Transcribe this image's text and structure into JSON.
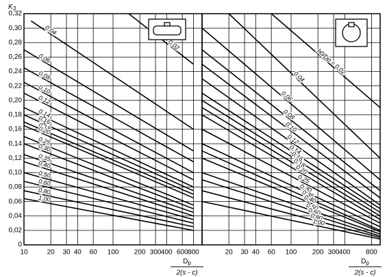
{
  "chart_data": [
    {
      "type": "line",
      "ylabel": "K",
      "ylabel_sub": "3",
      "xlabel_num": "D",
      "xlabel_num_sub": "p",
      "xlabel_den": "2(s - c)",
      "xlim": [
        10,
        1000
      ],
      "ylim": [
        0,
        0.32
      ],
      "log_x": true,
      "grid": true,
      "color": "#000000",
      "xticks": [
        10,
        20,
        30,
        40,
        60,
        100,
        200,
        300,
        400,
        600,
        800
      ],
      "yticks": [
        0,
        {
          "value": 0.02,
          "label": "0,02"
        },
        {
          "value": 0.04,
          "label": "0,04"
        },
        {
          "value": 0.06,
          "label": "0,06"
        },
        {
          "value": 0.08,
          "label": "0,08"
        },
        {
          "value": 0.1,
          "label": "0,10"
        },
        {
          "value": 0.12,
          "label": "0,12"
        },
        {
          "value": 0.14,
          "label": "0,14"
        },
        {
          "value": 0.16,
          "label": "0,16"
        },
        {
          "value": 0.18,
          "label": "0,18"
        },
        {
          "value": 0.2,
          "label": "0,20"
        },
        {
          "value": 0.22,
          "label": "0,22"
        },
        {
          "value": 0.24,
          "label": "0,24"
        },
        {
          "value": 0.26,
          "label": "0,26"
        },
        {
          "value": 0.28,
          "label": "0,28"
        },
        {
          "value": 0.3,
          "label": "0,30"
        },
        {
          "value": 0.32,
          "label": "0,32"
        }
      ],
      "series": [
        {
          "name": "b0/Dp = 0,02",
          "x": [
            150,
            800
          ],
          "values": [
            0.32,
            0.25
          ]
        },
        {
          "name": "0,04",
          "x": [
            12,
            800
          ],
          "values": [
            0.31,
            0.16
          ]
        },
        {
          "name": "0,06",
          "x": [
            10,
            800
          ],
          "values": [
            0.27,
            0.13
          ]
        },
        {
          "name": "0,08",
          "x": [
            10,
            800
          ],
          "values": [
            0.245,
            0.115
          ]
        },
        {
          "name": "0,10",
          "x": [
            10,
            800
          ],
          "values": [
            0.225,
            0.1
          ]
        },
        {
          "name": "0,12",
          "x": [
            10,
            800
          ],
          "values": [
            0.21,
            0.09
          ]
        },
        {
          "name": "0,14",
          "x": [
            10,
            800
          ],
          "values": [
            0.19,
            0.08
          ]
        },
        {
          "name": "0,16",
          "x": [
            10,
            800
          ],
          "values": [
            0.18,
            0.075
          ]
        },
        {
          "name": "0,18",
          "x": [
            10,
            800
          ],
          "values": [
            0.17,
            0.07
          ]
        },
        {
          "name": "0,20",
          "x": [
            10,
            800
          ],
          "values": [
            0.165,
            0.065
          ]
        },
        {
          "name": "0,25",
          "x": [
            10,
            800
          ],
          "values": [
            0.15,
            0.055
          ]
        },
        {
          "name": "0,30",
          "x": [
            10,
            800
          ],
          "values": [
            0.14,
            0.05
          ]
        },
        {
          "name": "0,35",
          "x": [
            10,
            800
          ],
          "values": [
            0.125,
            0.045
          ]
        },
        {
          "name": "0,40",
          "x": [
            10,
            800
          ],
          "values": [
            0.115,
            0.04
          ]
        },
        {
          "name": "0,50",
          "x": [
            10,
            800
          ],
          "values": [
            0.1,
            0.035
          ]
        },
        {
          "name": "0,60",
          "x": [
            10,
            800
          ],
          "values": [
            0.088,
            0.03
          ]
        },
        {
          "name": "0,80",
          "x": [
            10,
            800
          ],
          "values": [
            0.075,
            0.025
          ]
        },
        {
          "name": "1,00",
          "x": [
            10,
            800
          ],
          "values": [
            0.064,
            0.02
          ]
        }
      ]
    },
    {
      "type": "line",
      "xlabel_num": "D",
      "xlabel_num_sub": "p",
      "xlabel_den": "2(s - c)",
      "xlim": [
        10,
        1000
      ],
      "ylim": [
        0,
        0.32
      ],
      "log_x": true,
      "grid": true,
      "color": "#000000",
      "xticks": [
        20,
        30,
        40,
        60,
        100,
        200,
        300,
        400,
        800
      ],
      "series": [
        {
          "name": "b0/Dp = 0,02",
          "x": [
            60,
            1000
          ],
          "values": [
            0.32,
            0.19
          ]
        },
        {
          "name": "0,04",
          "x": [
            20,
            1000
          ],
          "values": [
            0.32,
            0.12
          ]
        },
        {
          "name": "0,06",
          "x": [
            10,
            1000
          ],
          "values": [
            0.3,
            0.09
          ]
        },
        {
          "name": "0,08",
          "x": [
            10,
            1000
          ],
          "values": [
            0.27,
            0.075
          ]
        },
        {
          "name": "0,10",
          "x": [
            10,
            1000
          ],
          "values": [
            0.25,
            0.065
          ]
        },
        {
          "name": "0,12",
          "x": [
            10,
            1000
          ],
          "values": [
            0.23,
            0.055
          ]
        },
        {
          "name": "0,14",
          "x": [
            10,
            1000
          ],
          "values": [
            0.21,
            0.05
          ]
        },
        {
          "name": "0,16",
          "x": [
            10,
            1000
          ],
          "values": [
            0.2,
            0.045
          ]
        },
        {
          "name": "0,18",
          "x": [
            10,
            1000
          ],
          "values": [
            0.19,
            0.04
          ]
        },
        {
          "name": "0,20",
          "x": [
            10,
            1000
          ],
          "values": [
            0.18,
            0.035
          ]
        },
        {
          "name": "0,25",
          "x": [
            10,
            1000
          ],
          "values": [
            0.16,
            0.03
          ]
        },
        {
          "name": "0,30",
          "x": [
            10,
            1000
          ],
          "values": [
            0.14,
            0.025
          ]
        },
        {
          "name": "0,35",
          "x": [
            10,
            1000
          ],
          "values": [
            0.13,
            0.02
          ]
        },
        {
          "name": "0,40",
          "x": [
            10,
            1000
          ],
          "values": [
            0.12,
            0.018
          ]
        },
        {
          "name": "0,50",
          "x": [
            10,
            1000
          ],
          "values": [
            0.1,
            0.015
          ]
        },
        {
          "name": "0,60",
          "x": [
            10,
            1000
          ],
          "values": [
            0.09,
            0.012
          ]
        },
        {
          "name": "0,80",
          "x": [
            10,
            1000
          ],
          "values": [
            0.075,
            0.01
          ]
        },
        {
          "name": "1,00",
          "x": [
            10,
            1000
          ],
          "values": [
            0.06,
            0.008
          ]
        }
      ]
    }
  ]
}
